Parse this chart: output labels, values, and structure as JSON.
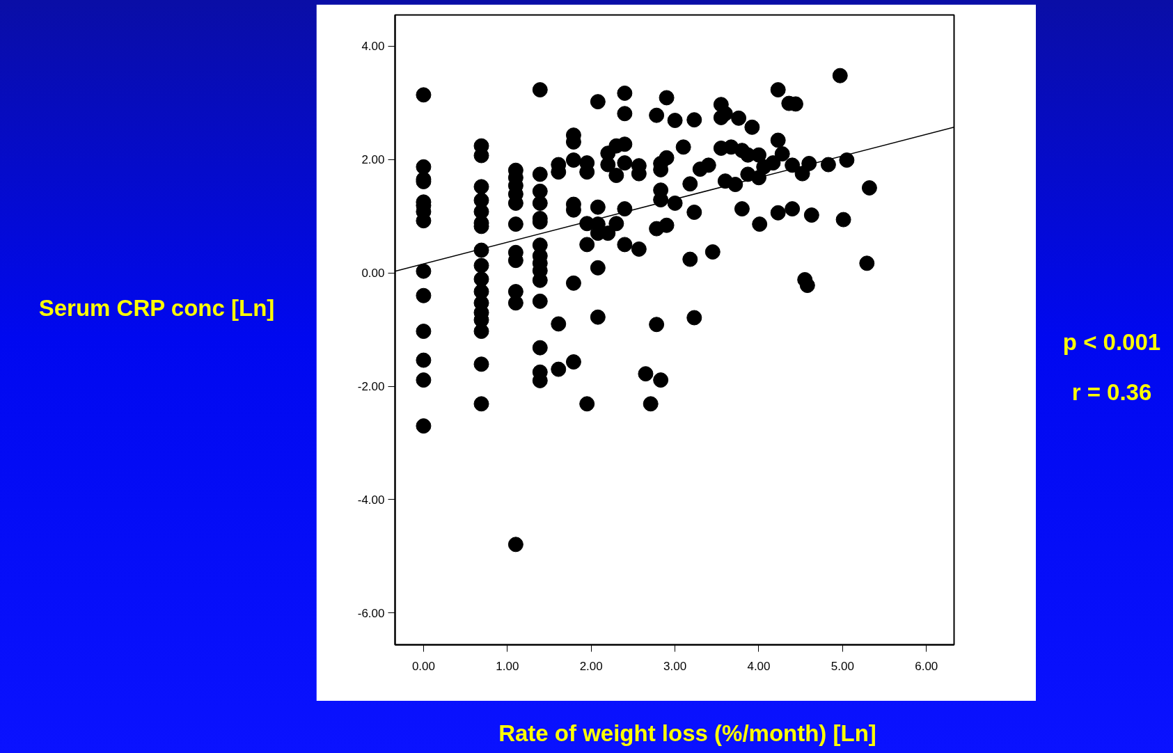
{
  "chart_data": {
    "type": "scatter",
    "xlabel": "Rate of weight loss (%/month) [Ln]",
    "ylabel": "Serum CRP conc [Ln]",
    "annotations": [
      "p < 0.001",
      "r = 0.36"
    ],
    "xlim": [
      -0.34,
      6.33
    ],
    "ylim": [
      -6.56,
      4.55
    ],
    "xticks": [
      {
        "value": 0,
        "label": "0.00"
      },
      {
        "value": 1,
        "label": "1.00"
      },
      {
        "value": 2,
        "label": "2.00"
      },
      {
        "value": 3,
        "label": "3.00"
      },
      {
        "value": 4,
        "label": "4.00"
      },
      {
        "value": 5,
        "label": "5.00"
      },
      {
        "value": 6,
        "label": "6.00"
      }
    ],
    "yticks": [
      {
        "value": -6,
        "label": "-6.00"
      },
      {
        "value": -4,
        "label": "-4.00"
      },
      {
        "value": -2,
        "label": "-2.00"
      },
      {
        "value": 0,
        "label": "0.00"
      },
      {
        "value": 2,
        "label": "2.00"
      },
      {
        "value": 4,
        "label": "4.00"
      }
    ],
    "grid": false,
    "series": [
      {
        "marker": "circle",
        "color": "#000000",
        "x": [
          0,
          0,
          0,
          0,
          0,
          0,
          0,
          0,
          0,
          0,
          0,
          0,
          0,
          0,
          0.69,
          0.69,
          0.69,
          0.69,
          0.69,
          0.69,
          0.69,
          0.69,
          0.69,
          0.69,
          0.69,
          0.69,
          0.69,
          0.69,
          0.69,
          0.69,
          0.69,
          1.1,
          1.1,
          1.1,
          1.1,
          1.1,
          1.1,
          1.1,
          1.1,
          1.1,
          1.1,
          1.1,
          1.39,
          1.39,
          1.39,
          1.39,
          1.39,
          1.39,
          1.39,
          1.39,
          1.39,
          1.39,
          1.39,
          1.39,
          1.39,
          1.39,
          1.39,
          1.61,
          1.61,
          1.61,
          1.61,
          1.79,
          1.79,
          1.79,
          1.79,
          1.79,
          1.79,
          1.79,
          1.95,
          1.95,
          1.95,
          1.95,
          1.95,
          2.08,
          2.08,
          2.08,
          2.08,
          2.08,
          2.08,
          2.2,
          2.2,
          2.2,
          2.3,
          2.3,
          2.3,
          2.4,
          2.4,
          2.4,
          2.4,
          2.4,
          2.4,
          2.57,
          2.57,
          2.57,
          2.78,
          2.78,
          2.78,
          2.65,
          2.71,
          2.83,
          2.83,
          2.83,
          2.83,
          2.83,
          2.9,
          2.9,
          2.9,
          3.0,
          3.0,
          3.1,
          3.18,
          3.18,
          3.23,
          3.23,
          3.23,
          3.3,
          3.4,
          3.45,
          3.55,
          3.55,
          3.55,
          3.6,
          3.6,
          3.67,
          3.72,
          3.76,
          3.8,
          3.8,
          3.87,
          3.87,
          3.92,
          4.0,
          4.0,
          4.01,
          4.06,
          4.17,
          4.23,
          4.23,
          4.23,
          4.28,
          4.36,
          4.44,
          4.4,
          4.4,
          4.52,
          4.55,
          4.58,
          4.6,
          4.63,
          4.83,
          4.97,
          5.01,
          5.05,
          5.29,
          5.32
        ],
        "values": [
          3.14,
          1.87,
          1.65,
          1.61,
          1.25,
          1.19,
          1.08,
          0.92,
          0.03,
          -0.4,
          -1.03,
          -1.54,
          -1.89,
          -2.7,
          2.24,
          2.07,
          1.52,
          1.28,
          1.08,
          0.88,
          0.82,
          0.4,
          0.13,
          -0.11,
          -0.33,
          -0.53,
          -0.7,
          -0.83,
          -1.03,
          -1.61,
          -2.31,
          1.81,
          1.68,
          1.54,
          1.39,
          1.23,
          0.86,
          0.36,
          0.22,
          -0.33,
          -0.53,
          -4.79,
          3.23,
          1.74,
          1.44,
          1.23,
          0.96,
          0.9,
          0.49,
          0.3,
          0.17,
          0.04,
          -0.13,
          -0.5,
          -1.32,
          -1.75,
          -1.9,
          1.91,
          1.78,
          -0.9,
          -1.7,
          2.43,
          2.31,
          1.99,
          1.21,
          1.11,
          -0.18,
          -1.57,
          1.94,
          1.78,
          0.87,
          0.5,
          -2.31,
          3.02,
          1.16,
          0.86,
          0.7,
          0.09,
          -0.78,
          2.11,
          1.91,
          0.7,
          2.24,
          1.72,
          0.87,
          3.17,
          2.81,
          2.27,
          1.94,
          1.13,
          0.5,
          1.89,
          1.75,
          0.42,
          2.78,
          0.78,
          -0.91,
          -1.78,
          -2.31,
          1.93,
          1.82,
          1.46,
          1.29,
          -1.89,
          3.09,
          2.03,
          0.84,
          2.69,
          1.23,
          2.22,
          1.57,
          0.24,
          2.7,
          1.07,
          -0.79,
          1.83,
          1.9,
          0.37,
          2.97,
          2.74,
          2.2,
          2.81,
          1.62,
          2.22,
          1.56,
          2.73,
          2.16,
          1.13,
          2.08,
          1.74,
          2.57,
          2.08,
          1.68,
          0.86,
          1.87,
          1.94,
          3.23,
          2.34,
          1.06,
          2.1,
          2.99,
          2.98,
          1.9,
          1.13,
          1.75,
          -0.12,
          -0.22,
          1.93,
          1.02,
          1.91,
          3.48,
          0.94,
          1.99,
          0.17,
          1.5
        ]
      },
      {
        "type": "line",
        "color": "#000000",
        "x": [
          -0.34,
          6.33
        ],
        "values": [
          0.03,
          2.57
        ]
      }
    ]
  }
}
